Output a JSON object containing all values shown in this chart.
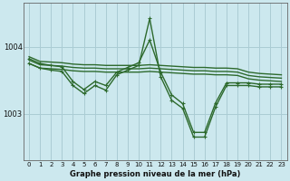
{
  "background_color": "#cce8ee",
  "grid_color": "#aaccd4",
  "line_color": "#2d6a2d",
  "title": "Graphe pression niveau de la mer (hPa)",
  "xlim": [
    -0.5,
    23.5
  ],
  "ylim": [
    1002.3,
    1004.65
  ],
  "yticks": [
    1003,
    1004
  ],
  "xticks": [
    0,
    1,
    2,
    3,
    4,
    5,
    6,
    7,
    8,
    9,
    10,
    11,
    12,
    13,
    14,
    15,
    16,
    17,
    18,
    19,
    20,
    21,
    22,
    23
  ],
  "series": [
    {
      "x": [
        0,
        1,
        2,
        3,
        4,
        5,
        6,
        7,
        8,
        9,
        10,
        11,
        12,
        13,
        14,
        15,
        16,
        17,
        18,
        19,
        20,
        21,
        22,
        23
      ],
      "y": [
        1003.85,
        1003.78,
        1003.77,
        1003.76,
        1003.74,
        1003.73,
        1003.73,
        1003.72,
        1003.72,
        1003.72,
        1003.72,
        1003.73,
        1003.72,
        1003.71,
        1003.7,
        1003.69,
        1003.69,
        1003.68,
        1003.68,
        1003.67,
        1003.62,
        1003.6,
        1003.59,
        1003.58
      ],
      "marker": null,
      "linewidth": 1.0
    },
    {
      "x": [
        0,
        1,
        2,
        3,
        4,
        5,
        6,
        7,
        8,
        9,
        10,
        11,
        12,
        13,
        14,
        15,
        16,
        17,
        18,
        19,
        20,
        21,
        22,
        23
      ],
      "y": [
        1003.8,
        1003.73,
        1003.72,
        1003.71,
        1003.69,
        1003.68,
        1003.68,
        1003.67,
        1003.67,
        1003.67,
        1003.67,
        1003.68,
        1003.67,
        1003.66,
        1003.65,
        1003.64,
        1003.64,
        1003.63,
        1003.63,
        1003.62,
        1003.57,
        1003.55,
        1003.54,
        1003.53
      ],
      "marker": null,
      "linewidth": 1.0
    },
    {
      "x": [
        0,
        1,
        2,
        3,
        4,
        5,
        6,
        7,
        8,
        9,
        10,
        11,
        12,
        13,
        14,
        15,
        16,
        17,
        18,
        19,
        20,
        21,
        22,
        23
      ],
      "y": [
        1003.75,
        1003.68,
        1003.67,
        1003.66,
        1003.64,
        1003.63,
        1003.63,
        1003.62,
        1003.62,
        1003.62,
        1003.62,
        1003.63,
        1003.62,
        1003.61,
        1003.6,
        1003.59,
        1003.59,
        1003.58,
        1003.58,
        1003.57,
        1003.52,
        1003.5,
        1003.49,
        1003.48
      ],
      "marker": null,
      "linewidth": 1.0
    },
    {
      "x": [
        0,
        1,
        2,
        3,
        4,
        5,
        6,
        7,
        8,
        9,
        10,
        11,
        12,
        13,
        14,
        15,
        16,
        17,
        18,
        19,
        20,
        21,
        22,
        23
      ],
      "y": [
        1003.75,
        1003.68,
        1003.65,
        1003.63,
        1003.42,
        1003.3,
        1003.42,
        1003.35,
        1003.58,
        1003.65,
        1003.72,
        1004.42,
        1003.55,
        1003.2,
        1003.08,
        1002.65,
        1002.65,
        1003.1,
        1003.42,
        1003.42,
        1003.42,
        1003.4,
        1003.4,
        1003.4
      ],
      "marker": "+",
      "linewidth": 1.0
    },
    {
      "x": [
        0,
        1,
        2,
        3,
        4,
        5,
        6,
        7,
        8,
        9,
        10,
        11,
        12,
        13,
        14,
        15,
        16,
        17,
        18,
        19,
        20,
        21,
        22,
        23
      ],
      "y": [
        1003.82,
        1003.75,
        1003.72,
        1003.7,
        1003.48,
        1003.36,
        1003.48,
        1003.42,
        1003.62,
        1003.69,
        1003.76,
        1004.1,
        1003.62,
        1003.28,
        1003.15,
        1002.72,
        1002.72,
        1003.16,
        1003.46,
        1003.46,
        1003.46,
        1003.44,
        1003.44,
        1003.44
      ],
      "marker": "+",
      "linewidth": 1.0
    }
  ],
  "spine_color": "#666666",
  "tick_fontsize": 5.0,
  "title_fontsize": 6.0
}
